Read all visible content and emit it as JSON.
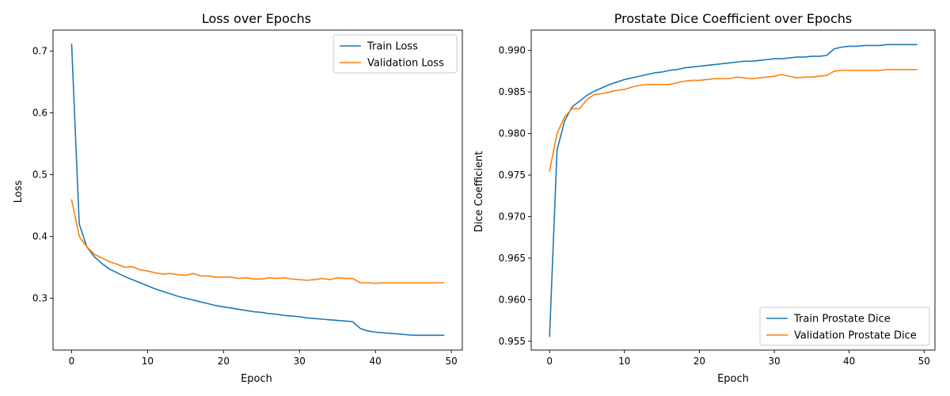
{
  "chart_data": [
    {
      "type": "line",
      "title": "Loss over Epochs",
      "xlabel": "Epoch",
      "ylabel": "Loss",
      "xlim": [
        -2.45,
        51.45
      ],
      "ylim": [
        0.216,
        0.734
      ],
      "xticks": [
        0,
        10,
        20,
        30,
        40,
        50
      ],
      "yticks": [
        0.3,
        0.4,
        0.5,
        0.6,
        0.7
      ],
      "grid": false,
      "legend": "top-right",
      "x": [
        0,
        1,
        2,
        3,
        4,
        5,
        6,
        7,
        8,
        9,
        10,
        11,
        12,
        13,
        14,
        15,
        16,
        17,
        18,
        19,
        20,
        21,
        22,
        23,
        24,
        25,
        26,
        27,
        28,
        29,
        30,
        31,
        32,
        33,
        34,
        35,
        36,
        37,
        38,
        39,
        40,
        41,
        42,
        43,
        44,
        45,
        46,
        47,
        48,
        49
      ],
      "series": [
        {
          "name": "Train Loss",
          "color": "#1f77b4",
          "values": [
            0.711,
            0.42,
            0.383,
            0.367,
            0.356,
            0.347,
            0.341,
            0.335,
            0.33,
            0.325,
            0.32,
            0.315,
            0.311,
            0.307,
            0.303,
            0.3,
            0.297,
            0.294,
            0.291,
            0.288,
            0.286,
            0.284,
            0.282,
            0.28,
            0.278,
            0.277,
            0.275,
            0.274,
            0.272,
            0.271,
            0.27,
            0.268,
            0.267,
            0.266,
            0.265,
            0.264,
            0.263,
            0.262,
            0.251,
            0.247,
            0.245,
            0.244,
            0.243,
            0.242,
            0.241,
            0.24,
            0.24,
            0.24,
            0.24,
            0.24
          ]
        },
        {
          "name": "Validation Loss",
          "color": "#ff7f0e",
          "values": [
            0.459,
            0.4,
            0.383,
            0.371,
            0.365,
            0.359,
            0.355,
            0.35,
            0.351,
            0.346,
            0.344,
            0.341,
            0.339,
            0.34,
            0.338,
            0.337,
            0.34,
            0.336,
            0.336,
            0.334,
            0.334,
            0.334,
            0.332,
            0.333,
            0.331,
            0.331,
            0.333,
            0.332,
            0.333,
            0.331,
            0.33,
            0.329,
            0.33,
            0.332,
            0.33,
            0.333,
            0.332,
            0.332,
            0.325,
            0.325,
            0.324,
            0.325,
            0.325,
            0.325,
            0.325,
            0.325,
            0.325,
            0.325,
            0.325,
            0.325
          ]
        }
      ]
    },
    {
      "type": "line",
      "title": "Prostate Dice Coefficient over Epochs",
      "xlabel": "Epoch",
      "ylabel": "Dice Coefficient",
      "xlim": [
        -2.45,
        51.45
      ],
      "ylim": [
        0.95394,
        0.99245
      ],
      "xticks": [
        0,
        10,
        20,
        30,
        40,
        50
      ],
      "yticks": [
        0.955,
        0.96,
        0.965,
        0.97,
        0.975,
        0.98,
        0.985,
        0.99
      ],
      "grid": false,
      "legend": "bottom-right",
      "x": [
        0,
        1,
        2,
        3,
        4,
        5,
        6,
        7,
        8,
        9,
        10,
        11,
        12,
        13,
        14,
        15,
        16,
        17,
        18,
        19,
        20,
        21,
        22,
        23,
        24,
        25,
        26,
        27,
        28,
        29,
        30,
        31,
        32,
        33,
        34,
        35,
        36,
        37,
        38,
        39,
        40,
        41,
        42,
        43,
        44,
        45,
        46,
        47,
        48,
        49
      ],
      "series": [
        {
          "name": "Train Prostate Dice",
          "color": "#1f77b4",
          "values": [
            0.9556,
            0.978,
            0.9815,
            0.9832,
            0.9839,
            0.9846,
            0.9851,
            0.9855,
            0.9859,
            0.9862,
            0.9865,
            0.9867,
            0.9869,
            0.9871,
            0.9873,
            0.9874,
            0.9876,
            0.9877,
            0.9879,
            0.988,
            0.9881,
            0.9882,
            0.9883,
            0.9884,
            0.9885,
            0.9886,
            0.9887,
            0.9887,
            0.9888,
            0.9889,
            0.989,
            0.989,
            0.9891,
            0.9892,
            0.9892,
            0.9893,
            0.9893,
            0.9894,
            0.9902,
            0.9904,
            0.9905,
            0.9905,
            0.9906,
            0.9906,
            0.9906,
            0.9907,
            0.9907,
            0.9907,
            0.9907,
            0.9907
          ]
        },
        {
          "name": "Validation Prostate Dice",
          "color": "#ff7f0e",
          "values": [
            0.9755,
            0.98,
            0.982,
            0.983,
            0.983,
            0.9841,
            0.9847,
            0.9848,
            0.985,
            0.9852,
            0.9853,
            0.9856,
            0.9858,
            0.9859,
            0.9859,
            0.9859,
            0.9859,
            0.9861,
            0.9863,
            0.9864,
            0.9864,
            0.9865,
            0.9866,
            0.9866,
            0.9866,
            0.9868,
            0.9867,
            0.9866,
            0.9867,
            0.9868,
            0.9869,
            0.9871,
            0.9869,
            0.9867,
            0.9868,
            0.9868,
            0.9869,
            0.987,
            0.9875,
            0.9876,
            0.9876,
            0.9876,
            0.9876,
            0.9876,
            0.9876,
            0.9877,
            0.9877,
            0.9877,
            0.9877,
            0.9877
          ]
        }
      ]
    }
  ]
}
